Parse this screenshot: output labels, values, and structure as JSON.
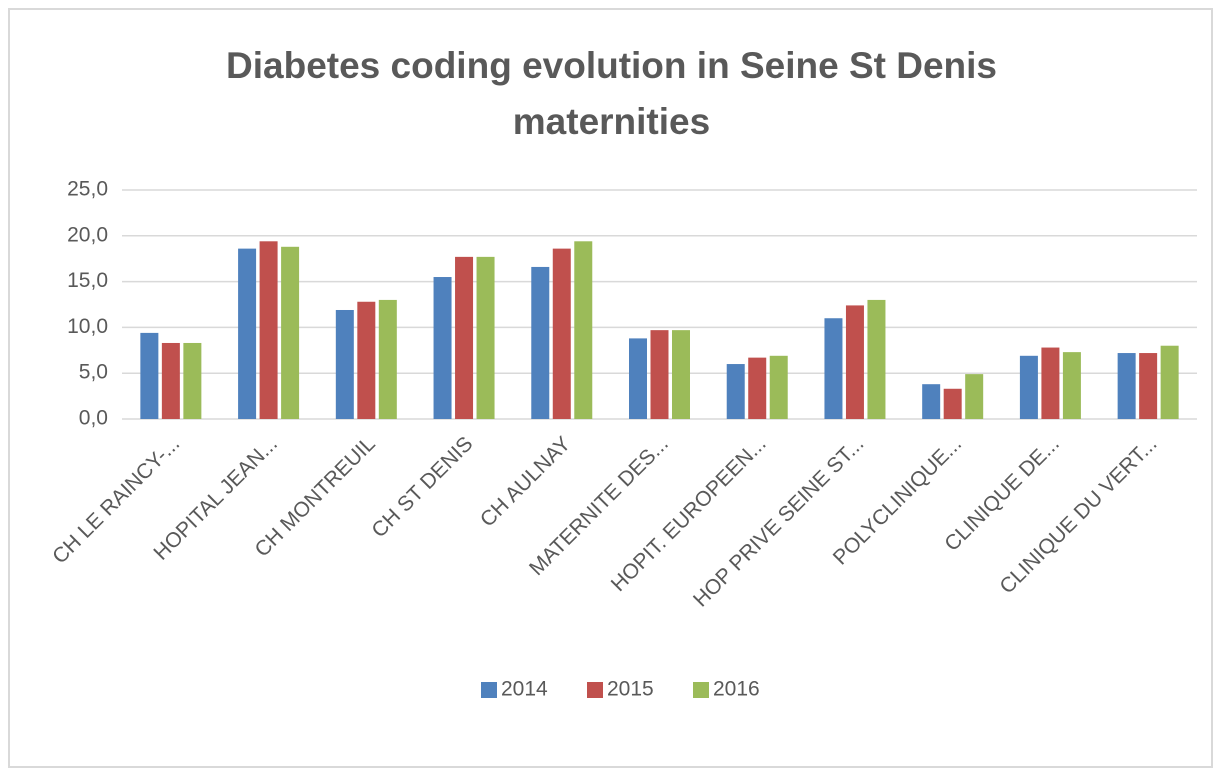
{
  "chart_data": {
    "type": "bar",
    "title": "Diabetes coding evolution in Seine St Denis maternities",
    "categories": [
      "CH LE RAINCY-...",
      "HOPITAL JEAN...",
      "CH MONTREUIL",
      "CH ST DENIS",
      "CH AULNAY",
      "MATERNITE DES...",
      "HOPIT. EUROPEEN...",
      "HOP PRIVE SEINE ST...",
      "POLYCLINIQUE...",
      "CLINIQUE DE...",
      "CLINIQUE DU VERT..."
    ],
    "series": [
      {
        "name": "2014",
        "color": "#4f81bd",
        "values": [
          9.4,
          18.6,
          11.9,
          15.5,
          16.6,
          8.8,
          6.0,
          11.0,
          3.8,
          6.9,
          7.2
        ]
      },
      {
        "name": "2015",
        "color": "#c0504d",
        "values": [
          8.3,
          19.4,
          12.8,
          17.7,
          18.6,
          9.7,
          6.7,
          12.4,
          3.3,
          7.8,
          7.2
        ]
      },
      {
        "name": "2016",
        "color": "#9bbb59",
        "values": [
          8.3,
          18.8,
          13.0,
          17.7,
          19.4,
          9.7,
          6.9,
          13.0,
          4.9,
          7.3,
          8.0
        ]
      }
    ],
    "ylim": [
      0,
      25
    ],
    "yticks": [
      {
        "value": 0,
        "label": "0,0"
      },
      {
        "value": 5,
        "label": "5,0"
      },
      {
        "value": 10,
        "label": "10,0"
      },
      {
        "value": 15,
        "label": "15,0"
      },
      {
        "value": 20,
        "label": "20,0"
      },
      {
        "value": 25,
        "label": "25,0"
      }
    ],
    "grid": true,
    "legend": "bottom"
  }
}
